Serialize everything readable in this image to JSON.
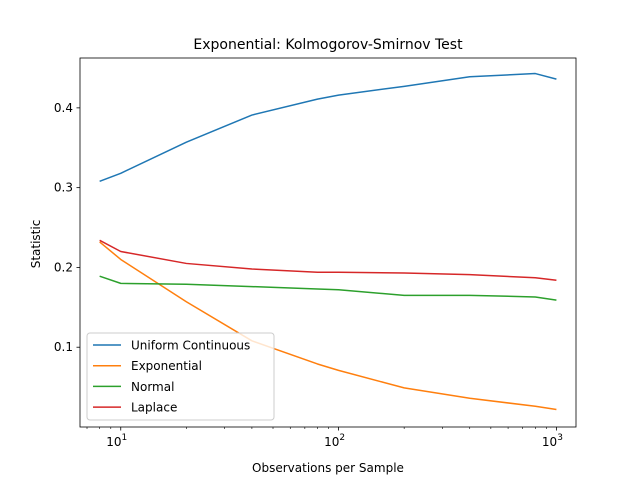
{
  "chart_data": {
    "type": "line",
    "title": "Exponential: Kolmogorov-Smirnov Test",
    "xlabel": "Observations per Sample",
    "ylabel": "Statistic",
    "xscale": "log",
    "xlim": [
      6.5,
      1230
    ],
    "ylim": [
      0.0,
      0.4625
    ],
    "x": [
      8,
      10,
      20,
      40,
      80,
      100,
      200,
      400,
      800,
      1000
    ],
    "xticks": [
      10,
      100,
      1000
    ],
    "xtick_labels": [
      {
        "base": "10",
        "exp": "1"
      },
      {
        "base": "10",
        "exp": "2"
      },
      {
        "base": "10",
        "exp": "3"
      }
    ],
    "yticks": [
      0.1,
      0.2,
      0.3,
      0.4
    ],
    "ytick_labels": [
      "0.1",
      "0.2",
      "0.3",
      "0.4"
    ],
    "grid": false,
    "legend_position": "lower-left",
    "series": [
      {
        "name": "Uniform Continuous",
        "color": "#1f77b4",
        "values": [
          0.308,
          0.318,
          0.357,
          0.391,
          0.411,
          0.416,
          0.427,
          0.439,
          0.443,
          0.436
        ]
      },
      {
        "name": "Exponential",
        "color": "#ff7f0e",
        "values": [
          0.232,
          0.21,
          0.157,
          0.108,
          0.079,
          0.071,
          0.049,
          0.036,
          0.026,
          0.022
        ]
      },
      {
        "name": "Normal",
        "color": "#2ca02c",
        "values": [
          0.189,
          0.18,
          0.179,
          0.176,
          0.173,
          0.172,
          0.165,
          0.165,
          0.163,
          0.159
        ]
      },
      {
        "name": "Laplace",
        "color": "#d62728",
        "values": [
          0.234,
          0.22,
          0.205,
          0.198,
          0.194,
          0.194,
          0.193,
          0.191,
          0.187,
          0.184
        ]
      }
    ]
  }
}
